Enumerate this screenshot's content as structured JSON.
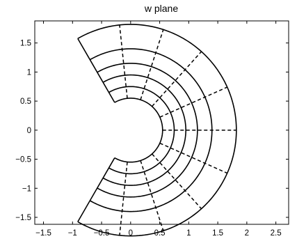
{
  "chart_data": {
    "type": "line",
    "title": "w plane",
    "xlabel": "",
    "ylabel": "",
    "xlim": [
      -1.65,
      2.72
    ],
    "ylim": [
      -1.62,
      1.88
    ],
    "xticks": [
      -1.5,
      -1,
      -0.5,
      0,
      0.5,
      1,
      1.5,
      2,
      2.5
    ],
    "xtick_labels": [
      "−1.5",
      "−1",
      "−0.5",
      "0",
      "0.5",
      "1",
      "1.5",
      "2",
      "2.5"
    ],
    "yticks": [
      -1.5,
      -1,
      -0.5,
      0,
      0.5,
      1,
      1.5
    ],
    "ytick_labels": [
      "−1.5",
      "−1",
      "−0.5",
      "0",
      "0.5",
      "1",
      "1.5"
    ],
    "grid": false,
    "series": [
      {
        "style": "solid",
        "kind": "arc",
        "radius": 0.55,
        "angle_range_deg": [
          -120,
          120
        ]
      },
      {
        "style": "solid",
        "kind": "arc",
        "radius": 0.75,
        "angle_range_deg": [
          -120,
          120
        ]
      },
      {
        "style": "solid",
        "kind": "arc",
        "radius": 0.95,
        "angle_range_deg": [
          -120,
          120
        ]
      },
      {
        "style": "solid",
        "kind": "arc",
        "radius": 1.15,
        "angle_range_deg": [
          -120,
          120
        ]
      },
      {
        "style": "solid",
        "kind": "arc",
        "radius": 1.4,
        "angle_range_deg": [
          -120,
          120
        ]
      },
      {
        "style": "solid",
        "kind": "arc",
        "radius": 1.82,
        "angle_range_deg": [
          -120,
          120
        ]
      },
      {
        "style": "solid",
        "kind": "ray",
        "angle_deg": 120,
        "radius_range": [
          0.55,
          1.82
        ]
      },
      {
        "style": "solid",
        "kind": "ray",
        "angle_deg": -120,
        "radius_range": [
          0.55,
          1.82
        ]
      },
      {
        "style": "dashed",
        "kind": "ray",
        "angle_deg": -96,
        "radius_range": [
          0.55,
          1.82
        ]
      },
      {
        "style": "dashed",
        "kind": "ray",
        "angle_deg": -72,
        "radius_range": [
          0.55,
          1.82
        ]
      },
      {
        "style": "dashed",
        "kind": "ray",
        "angle_deg": -48,
        "radius_range": [
          0.55,
          1.82
        ]
      },
      {
        "style": "dashed",
        "kind": "ray",
        "angle_deg": -24,
        "radius_range": [
          0.55,
          1.82
        ]
      },
      {
        "style": "dashed",
        "kind": "ray",
        "angle_deg": 0,
        "radius_range": [
          0.55,
          1.82
        ]
      },
      {
        "style": "dashed",
        "kind": "ray",
        "angle_deg": 24,
        "radius_range": [
          0.55,
          1.82
        ]
      },
      {
        "style": "dashed",
        "kind": "ray",
        "angle_deg": 48,
        "radius_range": [
          0.55,
          1.82
        ]
      },
      {
        "style": "dashed",
        "kind": "ray",
        "angle_deg": 72,
        "radius_range": [
          0.55,
          1.82
        ]
      },
      {
        "style": "dashed",
        "kind": "ray",
        "angle_deg": 96,
        "radius_range": [
          0.55,
          1.82
        ]
      }
    ]
  }
}
